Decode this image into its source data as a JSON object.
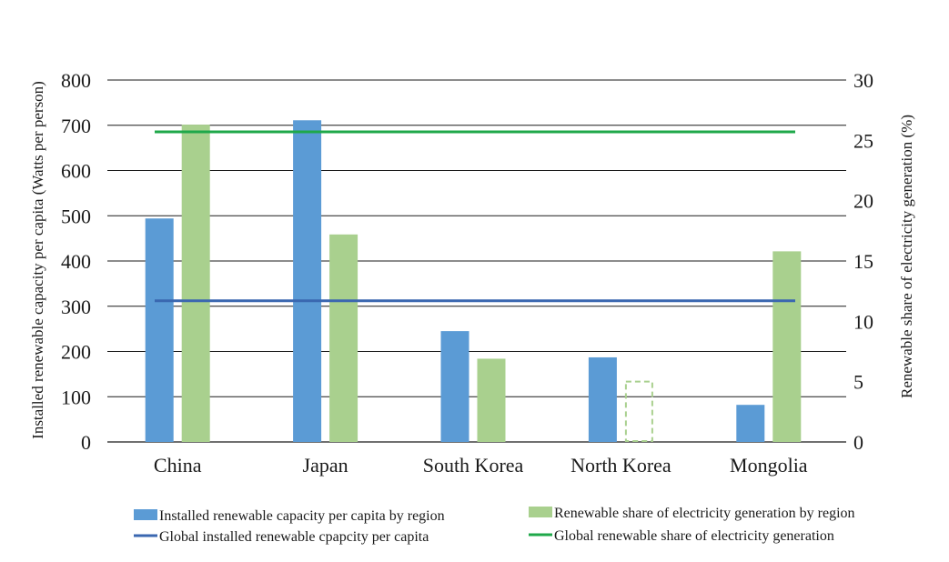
{
  "chart_data": {
    "type": "bar",
    "categories": [
      "China",
      "Japan",
      "South Korea",
      "North Korea",
      "Mongolia"
    ],
    "series": [
      {
        "name": "Installed renewable capacity per capita by region",
        "axis": "left",
        "color": "#5b9bd5",
        "values": [
          494,
          711,
          245,
          187,
          82
        ]
      },
      {
        "name": "Renewable share of electricity generation by region",
        "axis": "right",
        "color": "#a9d08e",
        "values": [
          26.3,
          17.2,
          6.9,
          5.0,
          15.8
        ],
        "estimated": [
          false,
          false,
          false,
          true,
          false
        ]
      }
    ],
    "reference_lines": [
      {
        "name": "Global installed renewable cpapcity per capita",
        "axis": "left",
        "value": 312,
        "color": "#3a67b0"
      },
      {
        "name": "Global renewable share of electricity generation",
        "axis": "right",
        "value": 25.7,
        "color": "#1fa84a"
      }
    ],
    "y_left": {
      "label": "Installed renewable capacity per capita (Watts per person)",
      "range": [
        0,
        800
      ],
      "ticks": [
        "0",
        "100",
        "200",
        "300",
        "400",
        "500",
        "600",
        "700",
        "800"
      ]
    },
    "y_right": {
      "label": "Renewable share of electricity generation (%)",
      "range": [
        0,
        30
      ],
      "ticks": [
        "0",
        "5",
        "10",
        "15",
        "20",
        "25",
        "30"
      ]
    },
    "grid": true,
    "legend_position": "bottom"
  }
}
